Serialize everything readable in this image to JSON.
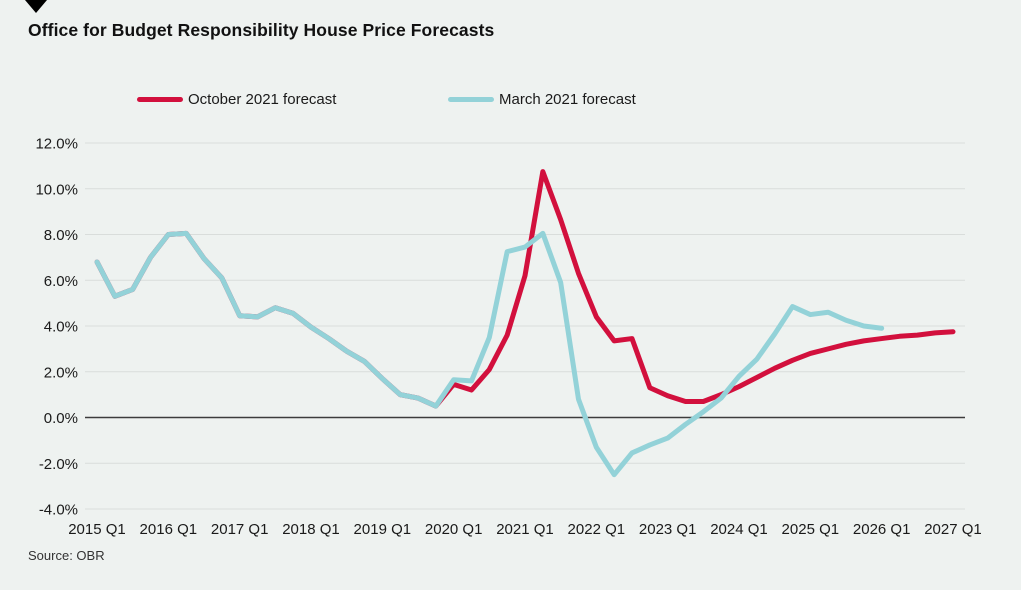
{
  "header": {
    "title": "Office for Budget Responsibility House Price Forecasts",
    "marker_icon": "down-triangle-icon"
  },
  "source": "Source: OBR",
  "colors": {
    "background": "#eef2f0",
    "gridline": "#d9dddb",
    "zero_line": "#3c3c3c",
    "text": "#1a1a1a",
    "october_series": "#d2103d",
    "march_series": "#93d2d8"
  },
  "chart_data": {
    "type": "line",
    "title": "Office for Budget Responsibility House Price Forecasts",
    "xlabel": "",
    "ylabel": "",
    "ylim": [
      -4,
      12
    ],
    "y_tick_values": [
      12,
      10,
      8,
      6,
      4,
      2,
      0,
      -2,
      -4
    ],
    "y_tick_labels": [
      "12.0%",
      "10.0%",
      "8.0%",
      "6.0%",
      "4.0%",
      "2.0%",
      "0.0%",
      "-2.0%",
      "-4.0%"
    ],
    "x_tick_labels": [
      "2015 Q1",
      "2016 Q1",
      "2017 Q1",
      "2018 Q1",
      "2019 Q1",
      "2020 Q1",
      "2021 Q1",
      "2022 Q1",
      "2023 Q1",
      "2024 Q1",
      "2025 Q1",
      "2026 Q1",
      "2027 Q1"
    ],
    "grid": "horizontal",
    "legend_position": "top",
    "quarters": [
      "2015 Q1",
      "2015 Q2",
      "2015 Q3",
      "2015 Q4",
      "2016 Q1",
      "2016 Q2",
      "2016 Q3",
      "2016 Q4",
      "2017 Q1",
      "2017 Q2",
      "2017 Q3",
      "2017 Q4",
      "2018 Q1",
      "2018 Q2",
      "2018 Q3",
      "2018 Q4",
      "2019 Q1",
      "2019 Q2",
      "2019 Q3",
      "2019 Q4",
      "2020 Q1",
      "2020 Q2",
      "2020 Q3",
      "2020 Q4",
      "2021 Q1",
      "2021 Q2",
      "2021 Q3",
      "2021 Q4",
      "2022 Q1",
      "2022 Q2",
      "2022 Q3",
      "2022 Q4",
      "2023 Q1",
      "2023 Q2",
      "2023 Q3",
      "2023 Q4",
      "2024 Q1",
      "2024 Q2",
      "2024 Q3",
      "2024 Q4",
      "2025 Q1",
      "2025 Q2",
      "2025 Q3",
      "2025 Q4",
      "2026 Q1",
      "2026 Q2",
      "2026 Q3",
      "2026 Q4",
      "2027 Q1"
    ],
    "series": [
      {
        "name": "October 2021 forecast",
        "color": "#d2103d",
        "stroke_width": 5,
        "values": [
          6.8,
          5.3,
          5.6,
          7.0,
          8.0,
          8.05,
          6.95,
          6.1,
          4.45,
          4.4,
          4.8,
          4.55,
          3.95,
          3.45,
          2.9,
          2.45,
          1.7,
          1.0,
          0.85,
          0.5,
          1.45,
          1.2,
          2.1,
          3.6,
          6.2,
          10.75,
          8.65,
          6.3,
          4.4,
          3.35,
          3.45,
          1.3,
          0.95,
          0.7,
          0.7,
          1.0,
          1.35,
          1.75,
          2.15,
          2.5,
          2.8,
          3.0,
          3.2,
          3.35,
          3.45,
          3.55,
          3.6,
          3.7,
          3.75
        ]
      },
      {
        "name": "March 2021 forecast",
        "color": "#93d2d8",
        "stroke_width": 5,
        "values": [
          6.8,
          5.3,
          5.6,
          7.0,
          8.0,
          8.05,
          6.95,
          6.1,
          4.45,
          4.4,
          4.8,
          4.55,
          3.95,
          3.45,
          2.9,
          2.45,
          1.7,
          1.0,
          0.85,
          0.5,
          1.65,
          1.6,
          3.5,
          7.25,
          7.45,
          8.05,
          5.9,
          0.8,
          -1.3,
          -2.5,
          -1.55,
          -1.2,
          -0.9,
          -0.3,
          0.25,
          0.85,
          1.8,
          2.55,
          3.65,
          4.85,
          4.5,
          4.6,
          4.25,
          4.0,
          3.9
        ]
      }
    ]
  }
}
